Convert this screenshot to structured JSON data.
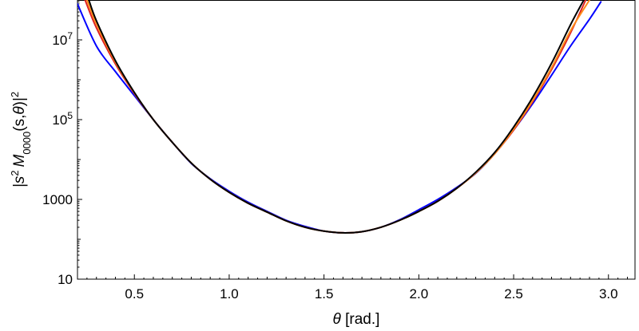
{
  "chart_data": {
    "type": "line",
    "title": "",
    "xlabel": "θ [rad.]",
    "ylabel": "|s² M0000(s,θ)|²",
    "ylabel_parts": {
      "open_bar": "|s",
      "s_exp": "2",
      "M": "M",
      "M_sub": "0000",
      "args": "(s,",
      "theta": "θ",
      "close": ")|",
      "outer_exp": "2"
    },
    "xlabel_parts": {
      "theta": "θ",
      "rest": " [rad.]"
    },
    "x_scale": "linear",
    "y_scale": "log",
    "xlim": [
      0.2,
      3.14
    ],
    "ylim": [
      10,
      100000000
    ],
    "grid": false,
    "x_ticks": [
      {
        "value": 0.5,
        "label": "0.5"
      },
      {
        "value": 1.0,
        "label": "1.0"
      },
      {
        "value": 1.5,
        "label": "1.5"
      },
      {
        "value": 2.0,
        "label": "2.0"
      },
      {
        "value": 2.5,
        "label": "2.5"
      },
      {
        "value": 3.0,
        "label": "3.0"
      }
    ],
    "y_ticks": [
      {
        "value": 10,
        "label": "10",
        "mantissa": "10",
        "exp": ""
      },
      {
        "value": 1000,
        "label": "1000",
        "mantissa": "1000",
        "exp": ""
      },
      {
        "value": 100000,
        "label": "10^5",
        "mantissa": "10",
        "exp": "5"
      },
      {
        "value": 10000000,
        "label": "10^7",
        "mantissa": "10",
        "exp": "7"
      }
    ],
    "series": [
      {
        "color": "#0000ff",
        "points": [
          [
            0.2,
            80000000
          ],
          [
            0.3,
            7000000
          ],
          [
            0.4,
            1600000
          ],
          [
            0.5,
            400000
          ],
          [
            0.6,
            100000
          ],
          [
            0.7,
            27000
          ],
          [
            0.8,
            8000
          ],
          [
            0.9,
            3300
          ],
          [
            1.0,
            1600
          ],
          [
            1.1,
            850
          ],
          [
            1.2,
            500
          ],
          [
            1.3,
            300
          ],
          [
            1.4,
            210
          ],
          [
            1.5,
            160
          ],
          [
            1.6,
            145
          ],
          [
            1.7,
            155
          ],
          [
            1.8,
            200
          ],
          [
            1.9,
            310
          ],
          [
            2.0,
            550
          ],
          [
            2.1,
            1000
          ],
          [
            2.2,
            2000
          ],
          [
            2.3,
            4500
          ],
          [
            2.4,
            14000
          ],
          [
            2.5,
            55000
          ],
          [
            2.6,
            250000
          ],
          [
            2.7,
            1300000
          ],
          [
            2.8,
            7000000
          ],
          [
            2.9,
            33000000
          ],
          [
            2.96,
            90000000
          ]
        ]
      },
      {
        "color": "#dd2222",
        "points": [
          [
            0.24,
            100000000
          ],
          [
            0.3,
            20000000
          ],
          [
            0.4,
            2500000
          ],
          [
            0.5,
            450000
          ],
          [
            0.6,
            100000
          ],
          [
            0.7,
            27000
          ],
          [
            0.8,
            8200
          ],
          [
            0.9,
            3200
          ],
          [
            1.0,
            1500
          ],
          [
            1.1,
            800
          ],
          [
            1.2,
            480
          ],
          [
            1.3,
            290
          ],
          [
            1.4,
            200
          ],
          [
            1.5,
            160
          ],
          [
            1.6,
            145
          ],
          [
            1.7,
            155
          ],
          [
            1.8,
            200
          ],
          [
            1.9,
            300
          ],
          [
            2.0,
            500
          ],
          [
            2.1,
            900
          ],
          [
            2.2,
            1900
          ],
          [
            2.3,
            4600
          ],
          [
            2.4,
            14000
          ],
          [
            2.5,
            55000
          ],
          [
            2.6,
            280000
          ],
          [
            2.7,
            1800000
          ],
          [
            2.8,
            15000000
          ],
          [
            2.88,
            100000000
          ]
        ]
      },
      {
        "color": "#ff8c1a",
        "points": [
          [
            0.25,
            100000000
          ],
          [
            0.3,
            25000000
          ],
          [
            0.4,
            2800000
          ],
          [
            0.5,
            470000
          ],
          [
            0.6,
            100000
          ],
          [
            0.7,
            27000
          ],
          [
            0.8,
            8200
          ],
          [
            0.9,
            3200
          ],
          [
            1.0,
            1500
          ],
          [
            1.1,
            800
          ],
          [
            1.2,
            480
          ],
          [
            1.3,
            290
          ],
          [
            1.4,
            200
          ],
          [
            1.5,
            160
          ],
          [
            1.6,
            145
          ],
          [
            1.7,
            155
          ],
          [
            1.8,
            200
          ],
          [
            1.9,
            300
          ],
          [
            2.0,
            500
          ],
          [
            2.1,
            900
          ],
          [
            2.2,
            1900
          ],
          [
            2.3,
            4600
          ],
          [
            2.4,
            14000
          ],
          [
            2.5,
            58000
          ],
          [
            2.6,
            300000
          ],
          [
            2.7,
            2000000
          ],
          [
            2.8,
            17000000
          ],
          [
            2.9,
            100000000
          ]
        ]
      },
      {
        "color": "#000000",
        "points": [
          [
            0.26,
            100000000
          ],
          [
            0.3,
            30000000
          ],
          [
            0.4,
            3000000
          ],
          [
            0.5,
            480000
          ],
          [
            0.6,
            100000
          ],
          [
            0.7,
            27000
          ],
          [
            0.8,
            8200
          ],
          [
            0.9,
            3200
          ],
          [
            1.0,
            1500
          ],
          [
            1.1,
            800
          ],
          [
            1.2,
            480
          ],
          [
            1.3,
            290
          ],
          [
            1.4,
            200
          ],
          [
            1.5,
            160
          ],
          [
            1.6,
            145
          ],
          [
            1.7,
            155
          ],
          [
            1.8,
            200
          ],
          [
            1.9,
            300
          ],
          [
            2.0,
            500
          ],
          [
            2.1,
            900
          ],
          [
            2.2,
            1900
          ],
          [
            2.3,
            4800
          ],
          [
            2.4,
            15000
          ],
          [
            2.5,
            65000
          ],
          [
            2.6,
            360000
          ],
          [
            2.7,
            2600000
          ],
          [
            2.8,
            24000000
          ],
          [
            2.87,
            100000000
          ]
        ]
      }
    ]
  }
}
